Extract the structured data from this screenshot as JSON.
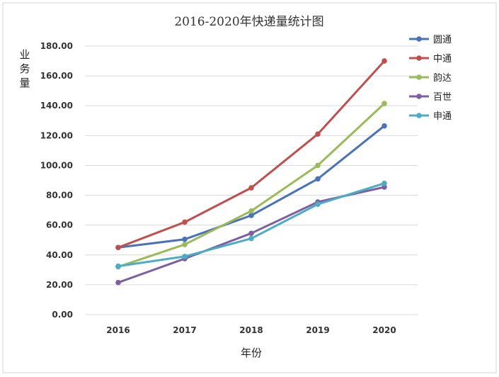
{
  "chart_data": {
    "type": "line",
    "title": "2016-2020年快递量统计图",
    "xlabel": "年份",
    "ylabel": "业务量",
    "categories": [
      "2016",
      "2017",
      "2018",
      "2019",
      "2020"
    ],
    "ylim": [
      0,
      180
    ],
    "yticks": [
      "0.00",
      "20.00",
      "40.00",
      "60.00",
      "80.00",
      "100.00",
      "120.00",
      "140.00",
      "160.00",
      "180.00"
    ],
    "grid": true,
    "legend_position": "right",
    "series": [
      {
        "name": "圆通",
        "color": "#4a72b8",
        "values": [
          45,
          50.5,
          66.5,
          91,
          126.5
        ]
      },
      {
        "name": "中通",
        "color": "#c0504d",
        "values": [
          45,
          62,
          85,
          121,
          170
        ]
      },
      {
        "name": "韵达",
        "color": "#9bbb59",
        "values": [
          32,
          47,
          69.5,
          100,
          141.5
        ]
      },
      {
        "name": "百世",
        "color": "#7e5fa2",
        "values": [
          21.5,
          37.5,
          54.5,
          75.5,
          85.5
        ]
      },
      {
        "name": "申通",
        "color": "#4bacc6",
        "values": [
          32.5,
          39,
          51,
          74,
          88
        ]
      }
    ]
  }
}
